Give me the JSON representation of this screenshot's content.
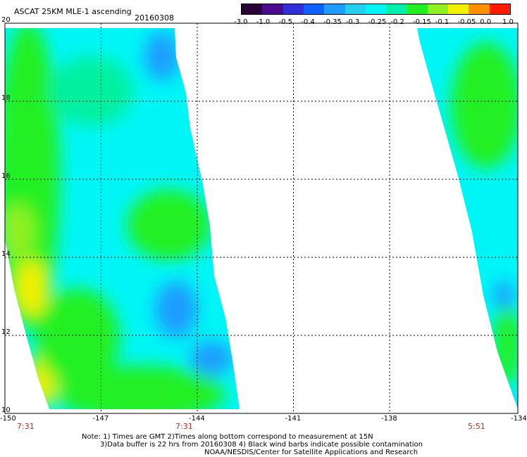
{
  "header": {
    "title": "ASCAT 25KM MLE-1 ascending",
    "date": "20160308"
  },
  "colorbar": {
    "labels": [
      "-3.0",
      "-1.0",
      "-0.5",
      "-0.4",
      "-0.35",
      "-0.3",
      "-0.25",
      "-0.2",
      "-0.15",
      "-0.1",
      "-0.05",
      "0.0",
      "1.0"
    ],
    "colors": [
      "#2a0038",
      "#4c0a8c",
      "#3030d8",
      "#1060ff",
      "#1e9cff",
      "#24d0f0",
      "#00f6f6",
      "#00f0b0",
      "#20f020",
      "#90f020",
      "#f0f000",
      "#ff9000",
      "#ff1a00"
    ]
  },
  "map": {
    "lon_min": -150,
    "lon_max": -134,
    "lat_min": 10,
    "lat_max": 20,
    "lon_ticks": [
      "-150",
      "-147",
      "-144",
      "-141",
      "-138",
      "-134"
    ],
    "lat_ticks": [
      "20",
      "18",
      "16",
      "14",
      "12",
      "10"
    ],
    "grid_lons": [
      -147,
      -144,
      -141,
      -138
    ],
    "grid_lats": [
      12,
      14,
      16,
      18
    ],
    "field_colors": {
      "cyan": "#00f6f6",
      "light_green": "#00f0a0",
      "green": "#20f020",
      "yellow_green": "#90f020",
      "yellow": "#f0f000",
      "orange": "#ff9000",
      "blue": "#1e9cff"
    }
  },
  "times": [
    "7:31",
    "7:31",
    "5:51"
  ],
  "notes": [
    "Note: 1) Times are GMT 2)Times along bottom correspond to measurement at 15N",
    "3)Data buffer is 22 hrs from 20160308 4) Black wind barbs indicate possible contamination",
    "NOAA/NESDIS/Center for Satellite Applications and Research"
  ]
}
